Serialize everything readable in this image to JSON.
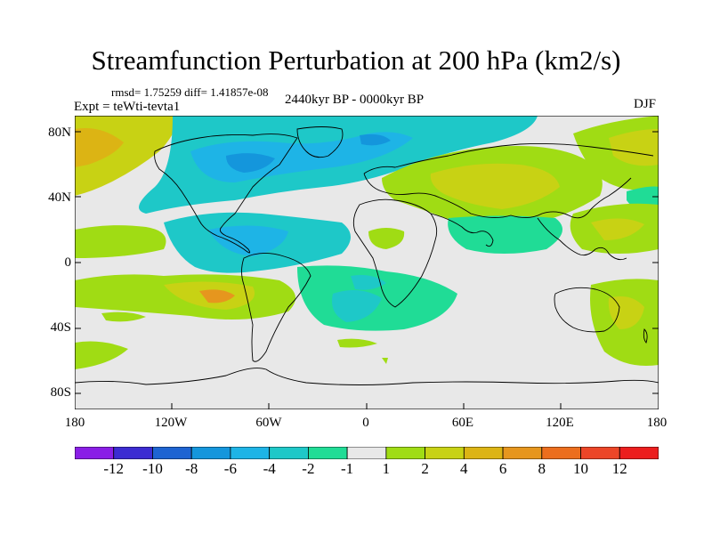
{
  "title": "Streamfunction Perturbation at 200 hPa (km2/s)",
  "stats": "rmsd= 1.75259 diff= 1.41857e-08",
  "experiment": "Expt = teWti-tevta1",
  "period": "2440kyr BP - 0000kyr BP",
  "season": "DJF",
  "lat_labels": [
    "80N",
    "40N",
    "0",
    "40S",
    "80S"
  ],
  "lon_labels": [
    "180",
    "120W",
    "60W",
    "0",
    "60E",
    "120E",
    "180"
  ],
  "colorbar": {
    "labels": [
      "-12",
      "-10",
      "-8",
      "-6",
      "-4",
      "-2",
      "-1",
      "1",
      "2",
      "4",
      "6",
      "8",
      "10",
      "12"
    ],
    "colors": [
      "#8a1ee6",
      "#3c2cd2",
      "#1e64d2",
      "#1496dc",
      "#1eb4e6",
      "#1ec8c8",
      "#20dc96",
      "#e8e8e8",
      "#a0dc14",
      "#c8d214",
      "#dcb414",
      "#e6961e",
      "#ec6e1e",
      "#ec4628",
      "#ec1e1e"
    ]
  },
  "field_colors": {
    "neg_strong": "#1496dc",
    "neg_mid": "#1eb4e6",
    "neg_light": "#1ec8c8",
    "neg_weak": "#20dc96",
    "neutral": "#e8e8e8",
    "pos_weak": "#a0dc14",
    "pos_light": "#c8d214",
    "pos_mid": "#dcb414",
    "pos_strong": "#e6961e"
  }
}
